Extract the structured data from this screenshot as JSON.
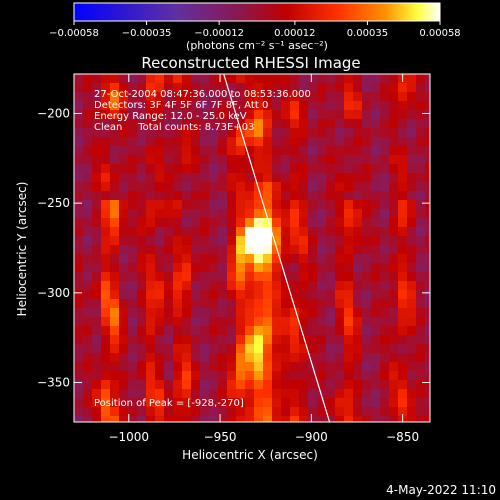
{
  "chart_data": {
    "type": "heatmap",
    "title": "Reconstructed RHESSI Image",
    "xlabel": "Heliocentric X (arcsec)",
    "ylabel": "Heliocentric Y (arcsec)",
    "xlim": [
      -1030,
      -835
    ],
    "ylim": [
      -372,
      -178
    ],
    "x_ticks": [
      -1000,
      -950,
      -900,
      -850
    ],
    "y_ticks": [
      -200,
      -250,
      -300,
      -350
    ],
    "x_tick_labels": [
      "−1000",
      "−950",
      "−900",
      "−850"
    ],
    "y_tick_labels": [
      "−200",
      "−250",
      "−300",
      "−350"
    ],
    "colorbar": {
      "range": [
        -0.00058,
        0.00058
      ],
      "ticks": [
        -0.00058,
        -0.00035,
        -0.00012,
        0.00012,
        0.00035,
        0.00058
      ],
      "tick_labels": [
        "−0.00058",
        "−0.00035",
        "−0.00012",
        "0.00012",
        "0.00035",
        "0.00058"
      ],
      "unit_label": "(photons cm⁻² s⁻¹ asec⁻²)",
      "colors": [
        "#0000ff",
        "#6030a0",
        "#c00000",
        "#ff3000",
        "#ff9000",
        "#ffff40",
        "#ffffff"
      ]
    },
    "annotations": [
      "27-Oct-2004 08:47:36.000 to 08:53:36.000",
      "Detectors: 3F 4F 5F 6F 7F 8F, Att 0",
      "Energy Range: 12.0 - 25.0 keV",
      "Clean     Total counts: 8.73E+03"
    ],
    "peak_label": "Position of Peak = [-928,-270]",
    "peak": {
      "x": -928,
      "y": -270
    },
    "limb_line": [
      {
        "x": -948,
        "y": -178
      },
      {
        "x": -890,
        "y": -372
      }
    ],
    "grid": false
  },
  "footer": {
    "date": "4-May-2022 11:10"
  }
}
